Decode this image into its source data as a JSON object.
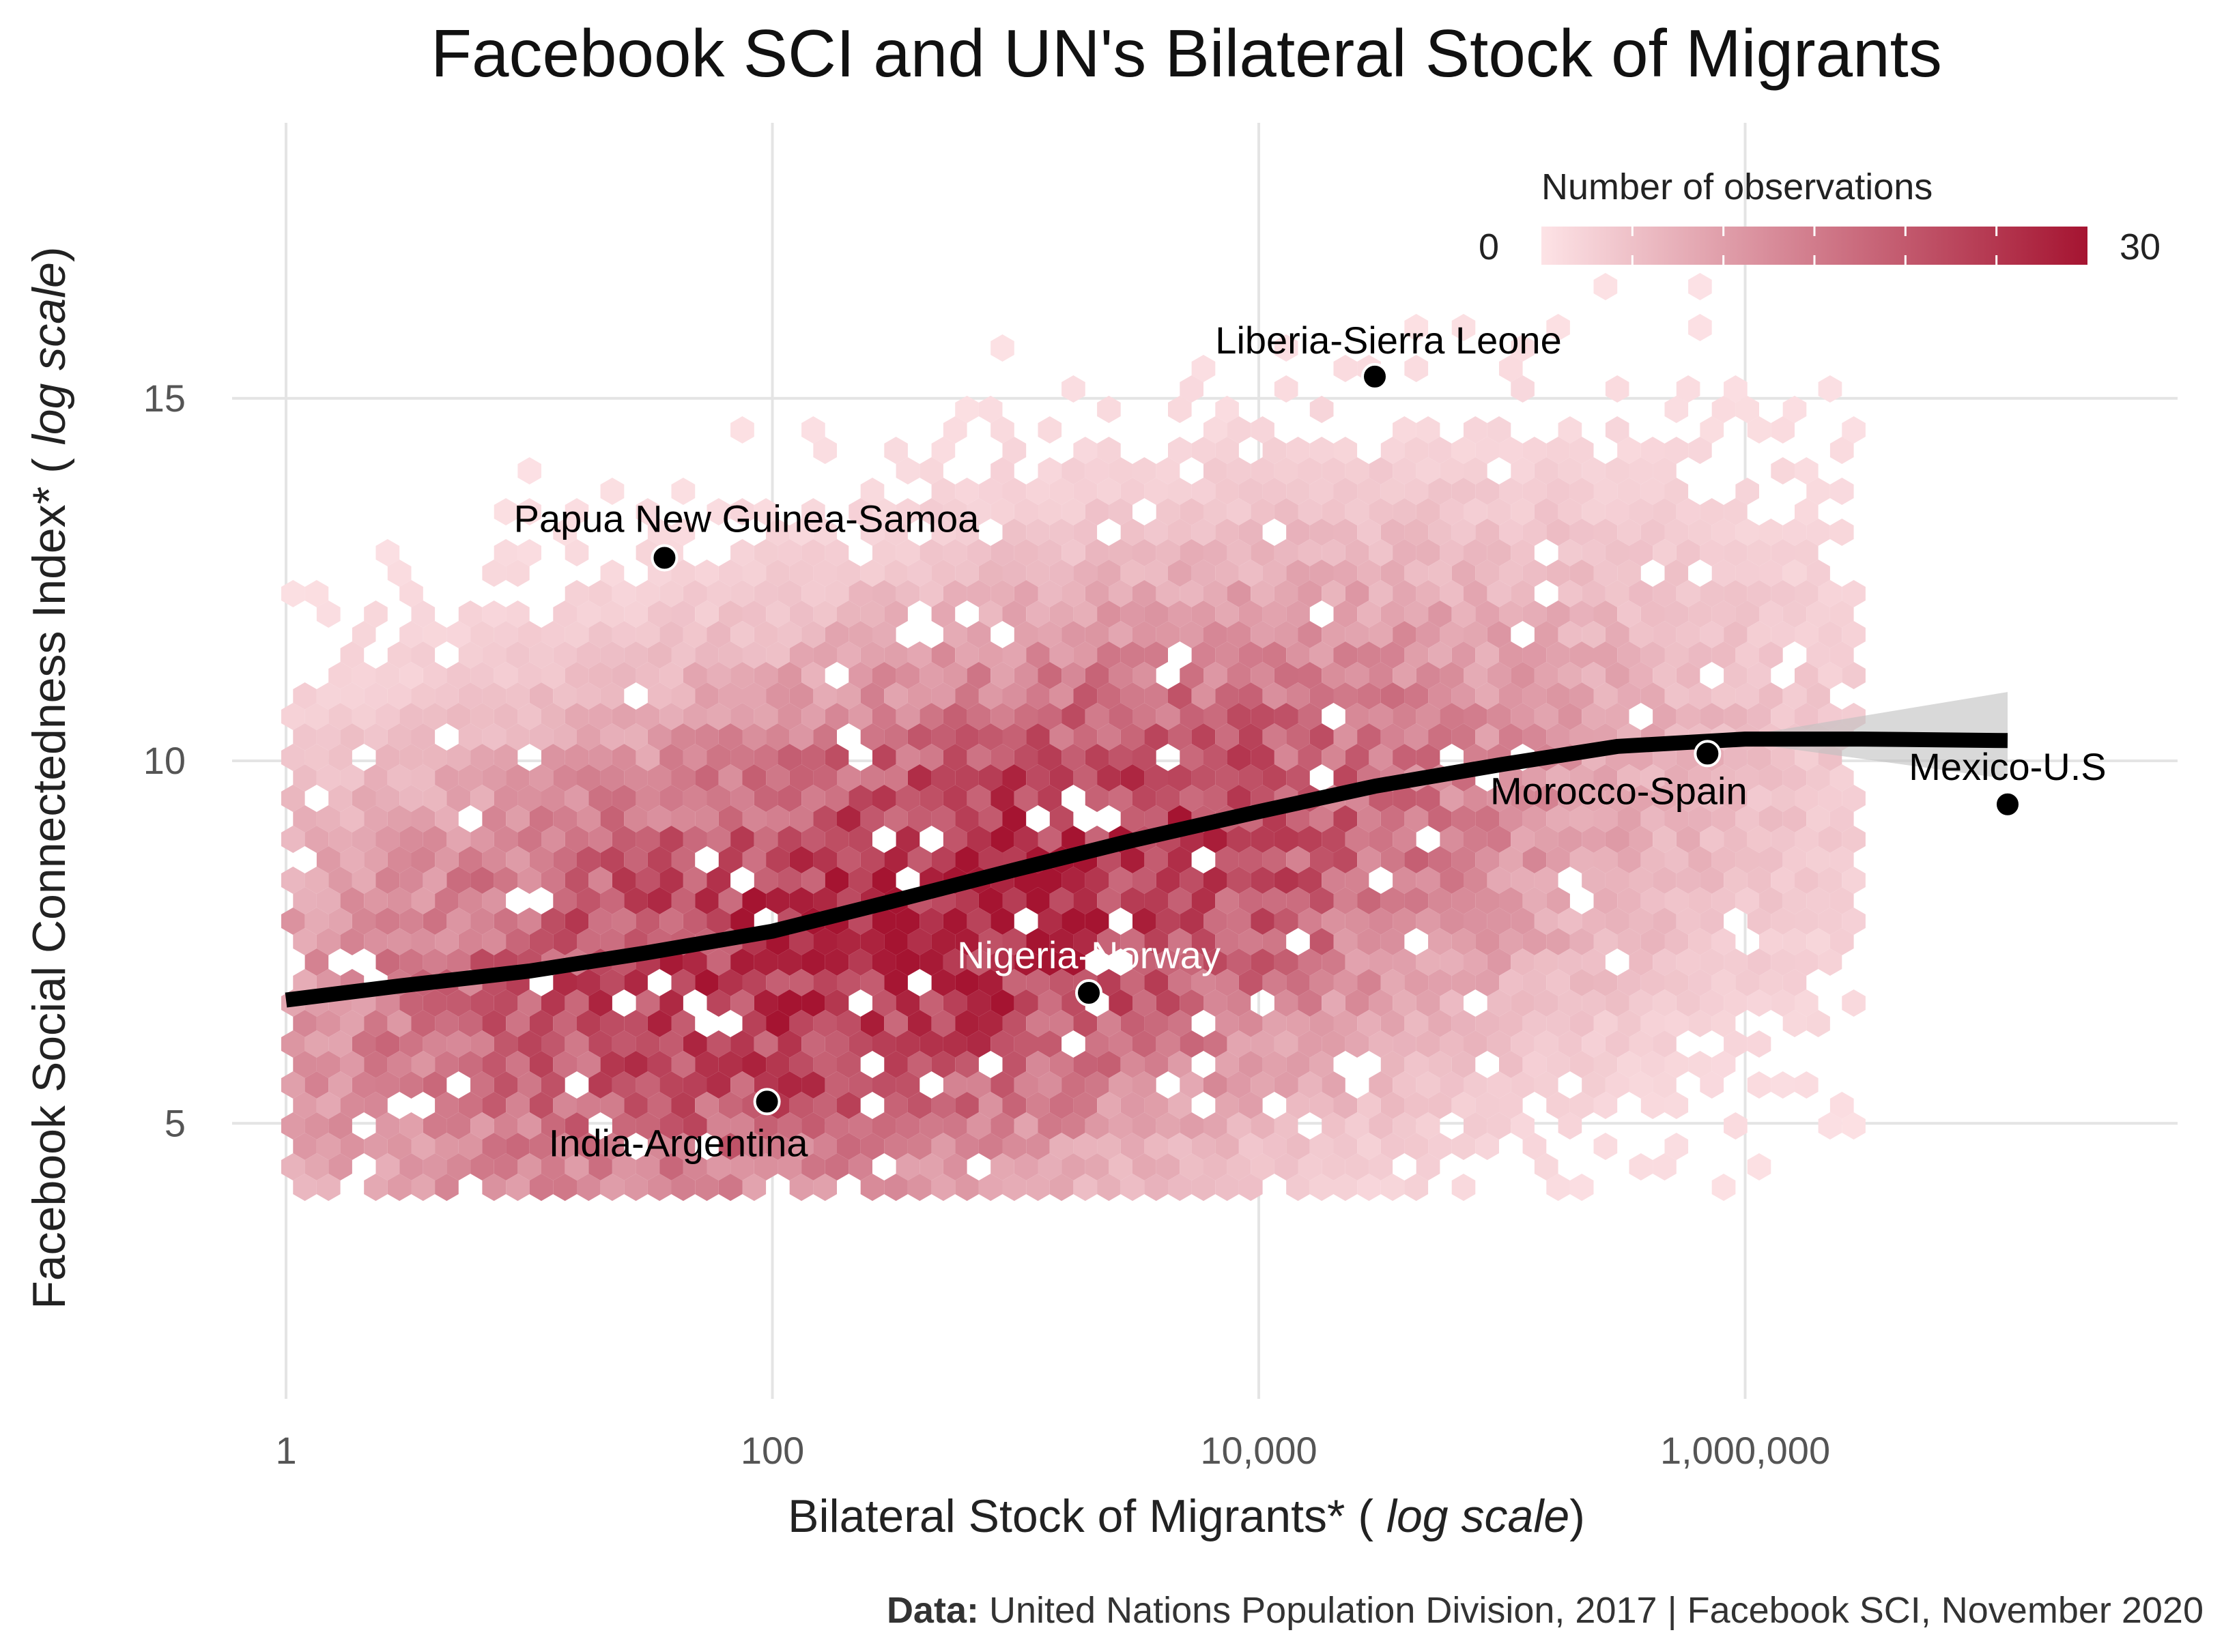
{
  "chart_data": {
    "type": "hexbin_scatter",
    "title": "Facebook SCI and UN's Bilateral Stock of Migrants",
    "xlabel": {
      "prefix": "Bilateral Stock of Migrants* ( ",
      "emph": "log scale",
      "suffix": ")"
    },
    "ylabel": {
      "prefix": "Facebook Social Connectedness Index* ( ",
      "emph": "log scale",
      "suffix": ")"
    },
    "x_scale": "log10",
    "x_ticks": [
      {
        "value": 1,
        "label": "1"
      },
      {
        "value": 100,
        "label": "100"
      },
      {
        "value": 10000,
        "label": "10,000"
      },
      {
        "value": 1000000,
        "label": "1,000,000"
      }
    ],
    "y_ticks": [
      {
        "value": 5,
        "label": "5"
      },
      {
        "value": 10,
        "label": "10"
      },
      {
        "value": 15,
        "label": "15"
      }
    ],
    "xlim": [
      0.6,
      60000000
    ],
    "ylim": [
      1.2,
      18.8
    ],
    "grid": true,
    "legend": {
      "title": "Number of observations",
      "min_label": "0",
      "max_label": "30",
      "min": 0,
      "max": 30,
      "color_low": "#fde3e6",
      "color_high": "#a51431",
      "placement": "top-right"
    },
    "highlight_points": [
      {
        "label": "Liberia-Sierra Leone",
        "x": 30000,
        "y": 15.3,
        "label_color": "#000000"
      },
      {
        "label": "Papua New Guinea-Samoa",
        "x": 36,
        "y": 12.8,
        "label_color": "#000000"
      },
      {
        "label": "Morocco-Spain",
        "x": 700000,
        "y": 10.1,
        "label_color": "#000000"
      },
      {
        "label": "Mexico-U.S",
        "x": 12000000,
        "y": 9.4,
        "label_color": "#000000"
      },
      {
        "label": "Nigeria-Norway",
        "x": 2000,
        "y": 6.8,
        "label_color": "#ffffff"
      },
      {
        "label": "India-Argentina",
        "x": 95,
        "y": 5.3,
        "label_color": "#000000"
      }
    ],
    "smooth_line": {
      "x": [
        1,
        3,
        10,
        30,
        100,
        300,
        1000,
        3000,
        10000,
        30000,
        100000,
        300000,
        1000000,
        3000000,
        12000000
      ],
      "y": [
        6.7,
        6.9,
        7.1,
        7.35,
        7.65,
        8.05,
        8.5,
        8.9,
        9.3,
        9.65,
        9.95,
        10.2,
        10.3,
        10.3,
        10.28
      ],
      "ci_upper_end": 10.95,
      "ci_lower_end": 9.75,
      "ci_start_x": 1000000
    }
  },
  "caption": {
    "bold": "Data:",
    "text": " United Nations Population Division, 2017 | Facebook SCI, November 2020"
  }
}
